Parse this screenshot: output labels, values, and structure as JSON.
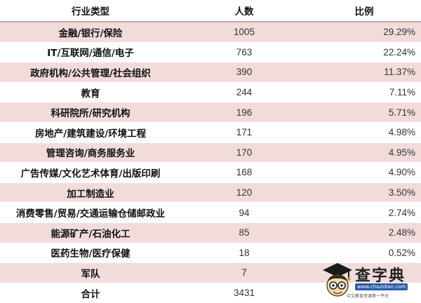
{
  "table": {
    "headers": {
      "industry": "行业类型",
      "count": "人数",
      "ratio": "比例"
    },
    "rows": [
      {
        "industry": "金融/银行/保险",
        "count": "1005",
        "ratio": "29.29%"
      },
      {
        "industry": "IT/互联网/通信/电子",
        "count": "763",
        "ratio": "22.24%"
      },
      {
        "industry": "政府机构/公共管理/社会组织",
        "count": "390",
        "ratio": "11.37%"
      },
      {
        "industry": "教育",
        "count": "244",
        "ratio": "7.11%"
      },
      {
        "industry": "科研院所/研究机构",
        "count": "196",
        "ratio": "5.71%"
      },
      {
        "industry": "房地产/建筑建设/环境工程",
        "count": "171",
        "ratio": "4.98%"
      },
      {
        "industry": "管理咨询/商务服务业",
        "count": "170",
        "ratio": "4.95%"
      },
      {
        "industry": "广告传媒/文化艺术体育/出版印刷",
        "count": "168",
        "ratio": "4.90%"
      },
      {
        "industry": "加工制造业",
        "count": "120",
        "ratio": "3.50%"
      },
      {
        "industry": "消费零售/贸易/交通运输仓储邮政业",
        "count": "94",
        "ratio": "2.74%"
      },
      {
        "industry": "能源矿产/石油化工",
        "count": "85",
        "ratio": "2.48%"
      },
      {
        "industry": "医药生物/医疗保健",
        "count": "18",
        "ratio": "0.52%"
      },
      {
        "industry": "军队",
        "count": "7",
        "ratio": ""
      },
      {
        "industry": "合计",
        "count": "3431",
        "ratio": ""
      }
    ]
  },
  "watermark": {
    "title": "查字典",
    "url": "www.chazidian.com",
    "slogan": "中文教育资源第一平台"
  },
  "colors": {
    "row_alt": "#f2dcdb",
    "row_plain": "#ffffff",
    "header_rule": "#c8a6a6"
  }
}
